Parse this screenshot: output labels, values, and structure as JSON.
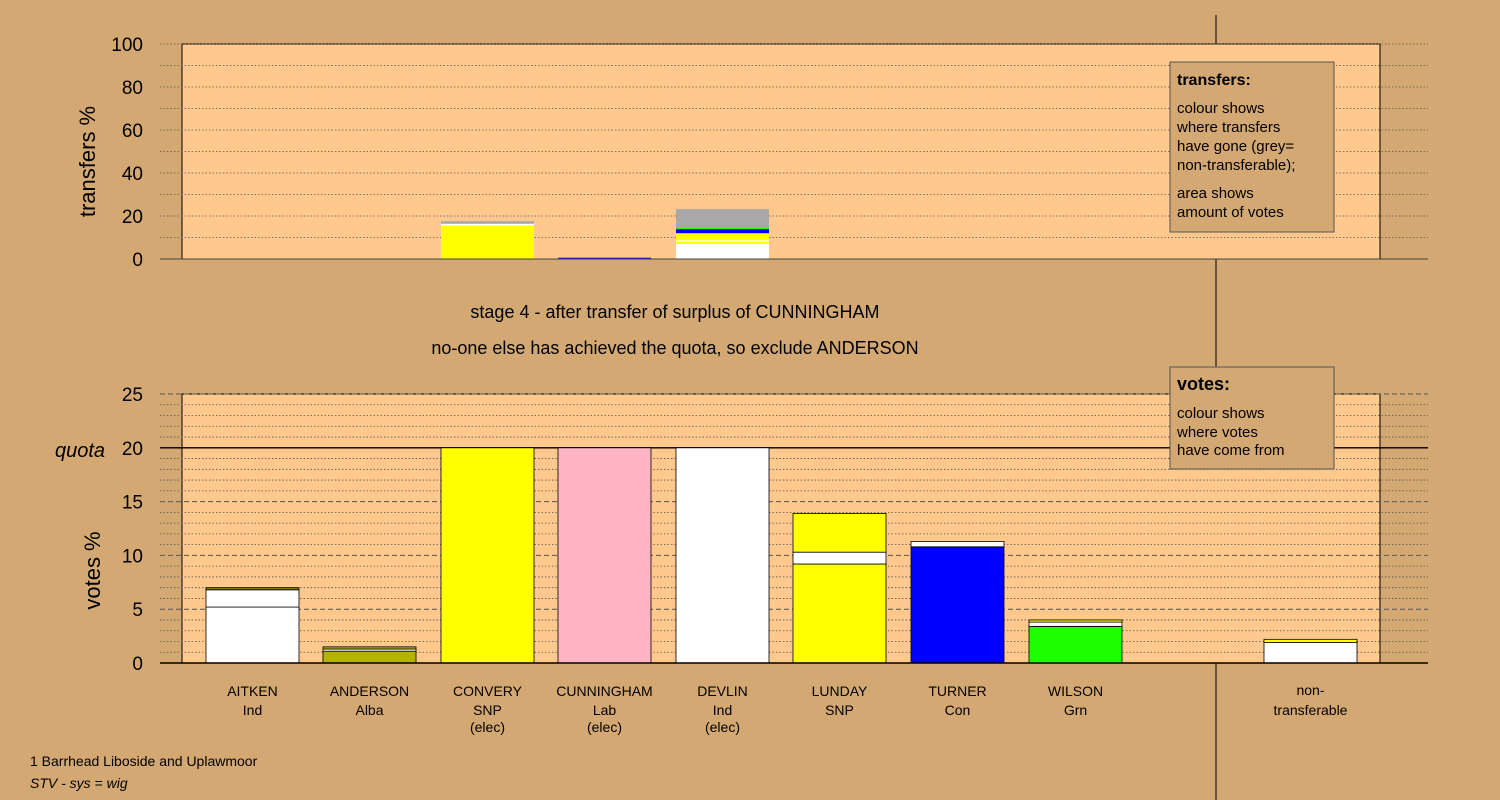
{
  "colors": {
    "background": "#d4a872",
    "plot_bg": "#ffc88c",
    "ind": "#ffffff",
    "alba": "#b4b400",
    "snp": "#ffff00",
    "lab": "#ffb4c4",
    "con": "#0000ff",
    "grn": "#1eff00",
    "nontransferable": "#a8a8a8",
    "olive_strip": "#8a7a10"
  },
  "stage_text": {
    "line1": "stage 4 - after transfer of surplus of CUNNINGHAM",
    "line2": "no-one else has achieved the quota, so exclude ANDERSON"
  },
  "footer": {
    "ward": "1 Barrhead Liboside and Uplawmoor",
    "system": "STV - sys = wig"
  },
  "legends": {
    "transfers": {
      "title": "transfers:",
      "para1": [
        "colour shows",
        "where transfers",
        "have gone (grey=",
        "non-transferable);"
      ],
      "para2": [
        "area shows",
        "amount of votes"
      ]
    },
    "votes": {
      "title": "votes:",
      "para1": [
        "colour shows",
        "where votes",
        "have come from"
      ]
    }
  },
  "chart_data": [
    {
      "type": "bar",
      "stacked": true,
      "ylabel": "transfers %",
      "ylim": [
        0,
        100
      ],
      "yticks": [
        0,
        20,
        40,
        60,
        80,
        100
      ],
      "minor_step": 10,
      "categories": [
        "AITKEN",
        "ANDERSON",
        "CONVERY",
        "CUNNINGHAM",
        "DEVLIN",
        "LUNDAY",
        "TURNER",
        "WILSON",
        "non-transferable"
      ],
      "bars": [
        {
          "category": "CONVERY",
          "segments": [
            {
              "colour": "snp",
              "from": 0,
              "to": 15.6
            },
            {
              "colour": "ind",
              "from": 15.6,
              "to": 16.4
            },
            {
              "colour": "nontransferable",
              "from": 16.4,
              "to": 17.6
            }
          ]
        },
        {
          "category": "CUNNINGHAM",
          "segments": [
            {
              "colour": "con",
              "from": 0,
              "to": 0.6
            }
          ]
        },
        {
          "category": "DEVLIN",
          "segments": [
            {
              "colour": "ind",
              "from": 0,
              "to": 7.0
            },
            {
              "colour": "snp",
              "from": 7.0,
              "to": 8.0
            },
            {
              "colour": "ind",
              "from": 8.0,
              "to": 8.7
            },
            {
              "colour": "snp",
              "from": 8.7,
              "to": 12.0
            },
            {
              "colour": "con",
              "from": 12.0,
              "to": 13.9
            },
            {
              "colour": "grn",
              "from": 13.9,
              "to": 14.6
            },
            {
              "colour": "nontransferable",
              "from": 14.6,
              "to": 23.2
            }
          ]
        }
      ]
    },
    {
      "type": "bar",
      "stacked": true,
      "ylabel": "votes %",
      "ylim": [
        0,
        25
      ],
      "yticks": [
        0,
        5,
        10,
        15,
        20,
        25
      ],
      "minor_step": 1,
      "quota": 20,
      "quota_label": "quota",
      "candidates": [
        {
          "name": "AITKEN",
          "party": "Ind",
          "status": "",
          "segments": [
            {
              "colour": "ind",
              "from": 0,
              "to": 5.2
            },
            {
              "colour": "ind",
              "from": 5.2,
              "to": 6.8
            },
            {
              "colour": "olive_strip",
              "from": 6.8,
              "to": 7.0
            }
          ]
        },
        {
          "name": "ANDERSON",
          "party": "Alba",
          "status": "",
          "segments": [
            {
              "colour": "alba",
              "from": 0,
              "to": 1.1
            },
            {
              "colour": "ind",
              "from": 1.1,
              "to": 1.3
            },
            {
              "colour": "alba",
              "from": 1.3,
              "to": 1.5
            }
          ]
        },
        {
          "name": "CONVERY",
          "party": "SNP",
          "status": "(elec)",
          "segments": [
            {
              "colour": "snp",
              "from": 0,
              "to": 20.0
            }
          ]
        },
        {
          "name": "CUNNINGHAM",
          "party": "Lab",
          "status": "(elec)",
          "segments": [
            {
              "colour": "lab",
              "from": 0,
              "to": 20.0
            }
          ]
        },
        {
          "name": "DEVLIN",
          "party": "Ind",
          "status": "(elec)",
          "segments": [
            {
              "colour": "ind",
              "from": 0,
              "to": 20.0
            }
          ]
        },
        {
          "name": "LUNDAY",
          "party": "SNP",
          "status": "",
          "segments": [
            {
              "colour": "snp",
              "from": 0,
              "to": 9.2
            },
            {
              "colour": "ind",
              "from": 9.2,
              "to": 10.3
            },
            {
              "colour": "snp",
              "from": 10.3,
              "to": 13.9
            }
          ]
        },
        {
          "name": "TURNER",
          "party": "Con",
          "status": "",
          "segments": [
            {
              "colour": "con",
              "from": 0,
              "to": 10.8
            },
            {
              "colour": "ind",
              "from": 10.8,
              "to": 11.3
            }
          ]
        },
        {
          "name": "WILSON",
          "party": "Grn",
          "status": "",
          "segments": [
            {
              "colour": "grn",
              "from": 0,
              "to": 3.4
            },
            {
              "colour": "ind",
              "from": 3.4,
              "to": 3.8
            },
            {
              "colour": "snp",
              "from": 3.8,
              "to": 4.0
            }
          ]
        }
      ],
      "nontransferable": {
        "label1": "non-",
        "label2": "transferable",
        "segments": [
          {
            "colour": "ind",
            "from": 0,
            "to": 1.9
          },
          {
            "colour": "snp",
            "from": 1.9,
            "to": 2.2
          }
        ]
      }
    }
  ]
}
